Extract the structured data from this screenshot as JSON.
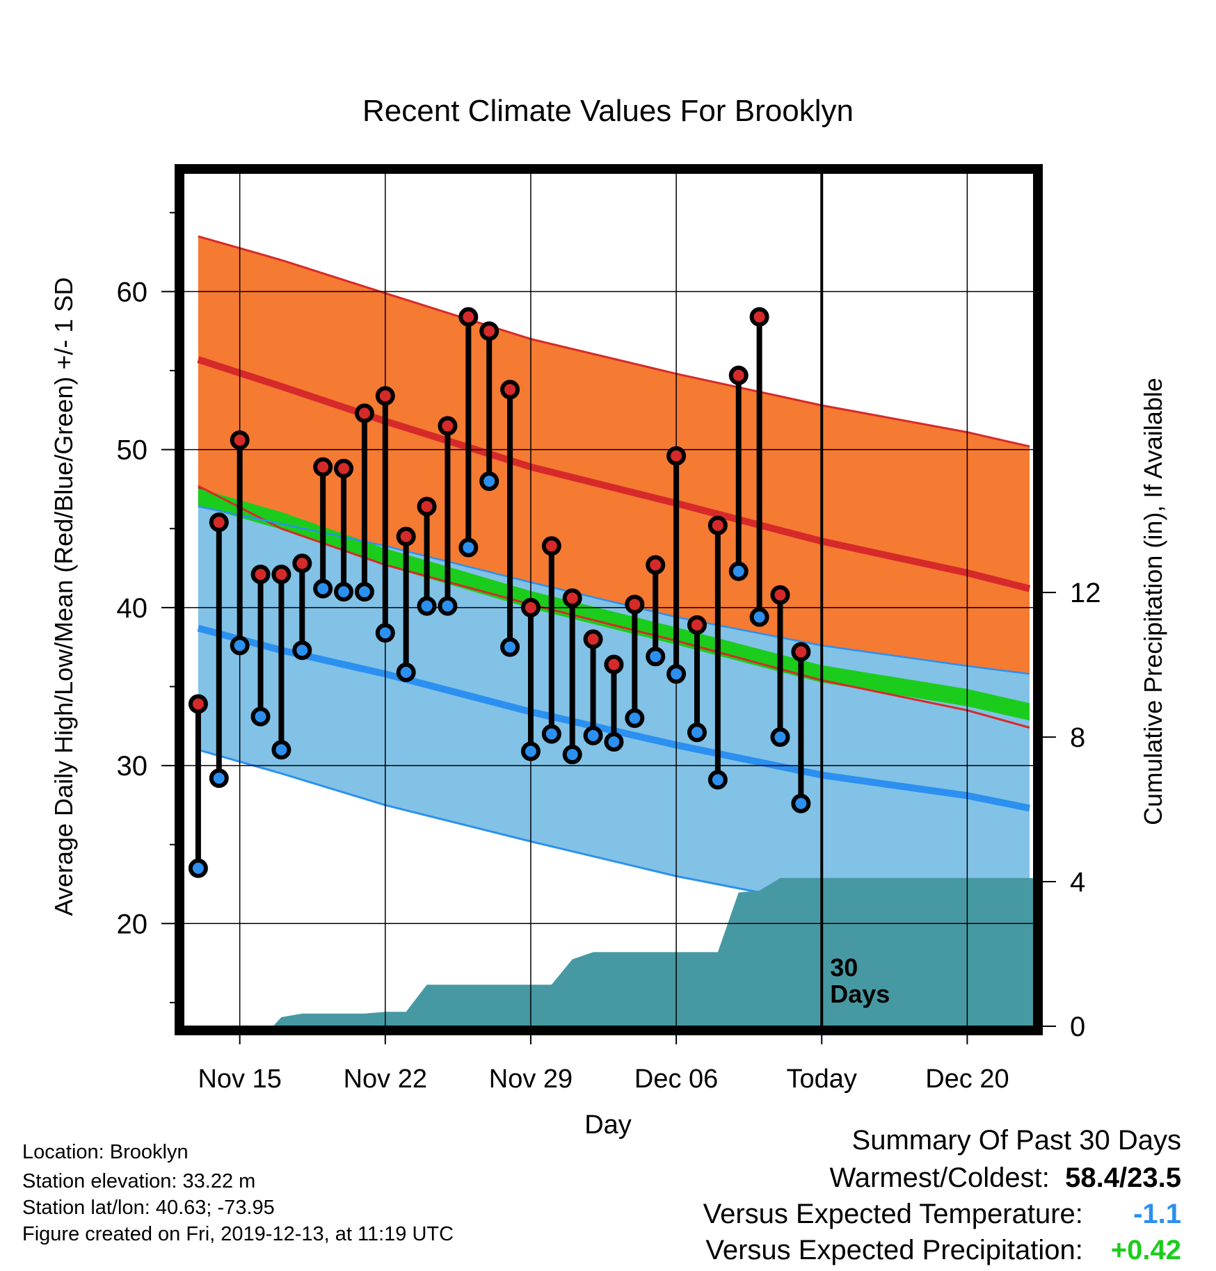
{
  "chart_data": {
    "type": "line",
    "title": "Recent Climate Values For Brooklyn",
    "xlabel": "Day",
    "ylabel": "Average Daily High/Low/Mean (Red/Blue/Green) +/- 1 SD",
    "y2label": "Cumulative Precipitation (in), If Available",
    "ylim": [
      13.5,
      67.5
    ],
    "y2lim": [
      0,
      23.6
    ],
    "xlim": [
      -2.7,
      38.2
    ],
    "x_ticks": [
      {
        "day": 0,
        "label": "Nov 15"
      },
      {
        "day": 7,
        "label": "Nov 22"
      },
      {
        "day": 14,
        "label": "Nov 29"
      },
      {
        "day": 21,
        "label": "Dec 06"
      },
      {
        "day": 28,
        "label": "Today"
      },
      {
        "day": 35,
        "label": "Dec 20"
      }
    ],
    "y_ticks": [
      "20",
      "30",
      "40",
      "50",
      "60"
    ],
    "y2_ticks": [
      "0",
      "4",
      "8",
      "12"
    ],
    "today_marker": {
      "day": 28,
      "label_line1": "30",
      "label_line2": "Days"
    },
    "normals_days": [
      -2,
      2,
      7,
      14,
      21,
      28,
      35,
      38
    ],
    "normal_high": [
      55.7,
      54.0,
      51.8,
      48.9,
      46.6,
      44.2,
      42.2,
      41.2
    ],
    "normal_high_plus_sd": [
      63.5,
      62.0,
      59.9,
      57.0,
      54.8,
      52.8,
      51.1,
      50.2
    ],
    "normal_high_minus_sd": [
      47.7,
      45.0,
      42.7,
      40.2,
      37.9,
      35.4,
      33.5,
      32.4
    ],
    "normal_mean": [
      47.0,
      45.5,
      43.2,
      40.5,
      38.2,
      35.8,
      34.3,
      33.4
    ],
    "normal_low": [
      38.7,
      37.3,
      35.8,
      33.4,
      31.3,
      29.4,
      28.1,
      27.3
    ],
    "normal_low_plus_sd": [
      46.4,
      45.3,
      43.9,
      41.6,
      39.4,
      37.6,
      36.3,
      35.8
    ],
    "normal_low_minus_sd": [
      31.0,
      29.5,
      27.5,
      25.2,
      23.0,
      21.2,
      19.8,
      19.2
    ],
    "observed": [
      {
        "day": -2,
        "high": 33.9,
        "low": 23.5
      },
      {
        "day": -1,
        "high": 45.4,
        "low": 29.2
      },
      {
        "day": 0,
        "high": 50.6,
        "low": 37.6
      },
      {
        "day": 1,
        "high": 42.1,
        "low": 33.1
      },
      {
        "day": 2,
        "high": 42.1,
        "low": 31.0
      },
      {
        "day": 3,
        "high": 42.8,
        "low": 37.3
      },
      {
        "day": 4,
        "high": 48.9,
        "low": 41.2
      },
      {
        "day": 5,
        "high": 48.8,
        "low": 41.0
      },
      {
        "day": 6,
        "high": 52.3,
        "low": 41.0
      },
      {
        "day": 7,
        "high": 53.4,
        "low": 38.4
      },
      {
        "day": 8,
        "high": 44.5,
        "low": 35.9
      },
      {
        "day": 9,
        "high": 46.4,
        "low": 40.1
      },
      {
        "day": 10,
        "high": 51.5,
        "low": 40.1
      },
      {
        "day": 11,
        "high": 58.4,
        "low": 43.8
      },
      {
        "day": 12,
        "high": 57.5,
        "low": 48.0
      },
      {
        "day": 13,
        "high": 53.8,
        "low": 37.5
      },
      {
        "day": 14,
        "high": 40.0,
        "low": 30.9
      },
      {
        "day": 15,
        "high": 43.9,
        "low": 32.0
      },
      {
        "day": 16,
        "high": 40.6,
        "low": 30.7
      },
      {
        "day": 17,
        "high": 38.0,
        "low": 31.9
      },
      {
        "day": 18,
        "high": 36.4,
        "low": 31.5
      },
      {
        "day": 19,
        "high": 40.2,
        "low": 33.0
      },
      {
        "day": 20,
        "high": 42.7,
        "low": 36.9
      },
      {
        "day": 21,
        "high": 49.6,
        "low": 35.8
      },
      {
        "day": 22,
        "high": 38.9,
        "low": 32.1
      },
      {
        "day": 23,
        "high": 45.2,
        "low": 29.1
      },
      {
        "day": 24,
        "high": 54.7,
        "low": 42.3
      },
      {
        "day": 25,
        "high": 58.4,
        "low": 39.4
      },
      {
        "day": 26,
        "high": 40.8,
        "low": 31.8
      },
      {
        "day": 27,
        "high": 37.2,
        "low": 27.6
      }
    ],
    "precip_days": [
      -2.7,
      0.0,
      0.2,
      0.9,
      1.6,
      2.0,
      3.0,
      4.0,
      5.0,
      6.0,
      7.0,
      8.0,
      9.0,
      10.0,
      11.0,
      12.0,
      13.0,
      14.0,
      15.0,
      16.0,
      17.0,
      18.0,
      19.0,
      20.0,
      21.0,
      22.0,
      23.0,
      24.0,
      25.0,
      26.0,
      27.0,
      28.0,
      38.2
    ],
    "precip_cumulative": [
      0,
      0,
      0,
      0,
      0,
      0.25,
      0.35,
      0.35,
      0.35,
      0.35,
      0.4,
      0.4,
      1.15,
      1.15,
      1.15,
      1.15,
      1.15,
      1.15,
      1.15,
      1.85,
      2.05,
      2.05,
      2.05,
      2.05,
      2.05,
      2.05,
      2.05,
      3.7,
      3.75,
      4.1,
      4.1,
      4.1,
      4.1
    ],
    "colors": {
      "high_band": "#f57a32",
      "high_edge": "#d62a2a",
      "low_band": "#82c2e6",
      "low_edge": "#2b90f0",
      "mean_band": "#1ccc1c",
      "overlap": "#961b1b",
      "precip": "#4699a2",
      "high_dot": "#d62a2a",
      "low_dot": "#2b90f0"
    }
  },
  "info": {
    "location": "Location: Brooklyn",
    "elevation": "Station elevation: 33.22 m",
    "latlon": "Station lat/lon: 40.63; -73.95",
    "created": "Figure created on Fri, 2019-12-13, at 11:19 UTC"
  },
  "summary": {
    "title": "Summary Of Past 30 Days",
    "warm_cold_label": "Warmest/Coldest:",
    "warm_cold_value": "58.4/23.5",
    "temp_label": "Versus Expected Temperature:",
    "temp_value": "-1.1",
    "temp_color": "#2b90f0",
    "precip_label": "Versus Expected Precipitation:",
    "precip_value": "+0.42",
    "precip_color": "#1ccc1c"
  }
}
